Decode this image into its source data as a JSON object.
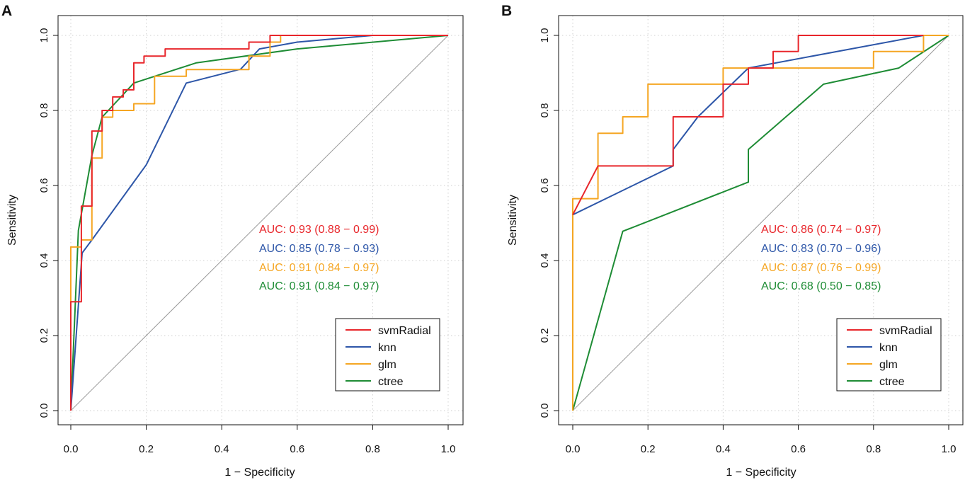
{
  "colors": {
    "svmRadial": "#e8262b",
    "knn": "#2d56a8",
    "glm": "#f5a623",
    "ctree": "#1e8c35"
  },
  "chart_data": [
    {
      "panel_label": "A",
      "type": "line",
      "title": "",
      "xlabel": "1 − Specificity",
      "ylabel": "Sensitivity",
      "xlim": [
        0,
        1
      ],
      "ylim": [
        0,
        1
      ],
      "x_ticks": [
        "0.0",
        "0.2",
        "0.4",
        "0.6",
        "0.8",
        "1.0"
      ],
      "y_ticks": [
        "0.0",
        "0.2",
        "0.4",
        "0.6",
        "0.8",
        "1.0"
      ],
      "grid": true,
      "diagonal_reference": true,
      "legend_position": "bottom-right",
      "series": [
        {
          "name": "svmRadial",
          "color": "#e8262b",
          "auc_label": "AUC: 0.93 (0.88 − 0.99)",
          "points": [
            [
              0,
              0
            ],
            [
              0,
              0.29
            ],
            [
              0.028,
              0.29
            ],
            [
              0.028,
              0.545
            ],
            [
              0.056,
              0.545
            ],
            [
              0.056,
              0.745
            ],
            [
              0.083,
              0.745
            ],
            [
              0.083,
              0.8
            ],
            [
              0.111,
              0.8
            ],
            [
              0.111,
              0.836
            ],
            [
              0.139,
              0.836
            ],
            [
              0.139,
              0.855
            ],
            [
              0.167,
              0.855
            ],
            [
              0.167,
              0.927
            ],
            [
              0.194,
              0.927
            ],
            [
              0.194,
              0.945
            ],
            [
              0.25,
              0.945
            ],
            [
              0.25,
              0.964
            ],
            [
              0.472,
              0.964
            ],
            [
              0.472,
              0.982
            ],
            [
              0.528,
              0.982
            ],
            [
              0.528,
              1
            ],
            [
              1,
              1
            ]
          ]
        },
        {
          "name": "knn",
          "color": "#2d56a8",
          "auc_label": "AUC: 0.85 (0.78 − 0.93)",
          "points": [
            [
              0,
              0
            ],
            [
              0.03,
              0.42
            ],
            [
              0.056,
              0.455
            ],
            [
              0.2,
              0.655
            ],
            [
              0.306,
              0.873
            ],
            [
              0.45,
              0.91
            ],
            [
              0.5,
              0.964
            ],
            [
              0.6,
              0.982
            ],
            [
              0.8,
              1
            ],
            [
              1,
              1
            ]
          ]
        },
        {
          "name": "glm",
          "color": "#f5a623",
          "auc_label": "AUC: 0.91 (0.84 − 0.97)",
          "points": [
            [
              0,
              0
            ],
            [
              0,
              0.436
            ],
            [
              0.028,
              0.436
            ],
            [
              0.028,
              0.455
            ],
            [
              0.056,
              0.455
            ],
            [
              0.056,
              0.673
            ],
            [
              0.083,
              0.673
            ],
            [
              0.083,
              0.782
            ],
            [
              0.111,
              0.782
            ],
            [
              0.111,
              0.8
            ],
            [
              0.167,
              0.8
            ],
            [
              0.167,
              0.818
            ],
            [
              0.222,
              0.818
            ],
            [
              0.222,
              0.891
            ],
            [
              0.306,
              0.891
            ],
            [
              0.306,
              0.909
            ],
            [
              0.472,
              0.909
            ],
            [
              0.472,
              0.945
            ],
            [
              0.528,
              0.945
            ],
            [
              0.528,
              0.982
            ],
            [
              0.556,
              0.982
            ],
            [
              0.556,
              1
            ],
            [
              1,
              1
            ]
          ]
        },
        {
          "name": "ctree",
          "color": "#1e8c35",
          "auc_label": "AUC: 0.91 (0.84 − 0.97)",
          "points": [
            [
              0,
              0
            ],
            [
              0.02,
              0.48
            ],
            [
              0.056,
              0.68
            ],
            [
              0.083,
              0.782
            ],
            [
              0.167,
              0.873
            ],
            [
              0.333,
              0.927
            ],
            [
              0.6,
              0.964
            ],
            [
              1,
              1
            ]
          ]
        }
      ]
    },
    {
      "panel_label": "B",
      "type": "line",
      "title": "",
      "xlabel": "1 − Specificity",
      "ylabel": "Sensitivity",
      "xlim": [
        0,
        1
      ],
      "ylim": [
        0,
        1
      ],
      "x_ticks": [
        "0.0",
        "0.2",
        "0.4",
        "0.6",
        "0.8",
        "1.0"
      ],
      "y_ticks": [
        "0.0",
        "0.2",
        "0.4",
        "0.6",
        "0.8",
        "1.0"
      ],
      "grid": true,
      "diagonal_reference": true,
      "legend_position": "bottom-right",
      "series": [
        {
          "name": "svmRadial",
          "color": "#e8262b",
          "auc_label": "AUC: 0.86 (0.74 − 0.97)",
          "points": [
            [
              0,
              0.522
            ],
            [
              0.067,
              0.652
            ],
            [
              0.267,
              0.652
            ],
            [
              0.267,
              0.783
            ],
            [
              0.4,
              0.783
            ],
            [
              0.4,
              0.87
            ],
            [
              0.467,
              0.87
            ],
            [
              0.467,
              0.913
            ],
            [
              0.533,
              0.913
            ],
            [
              0.533,
              0.957
            ],
            [
              0.6,
              0.957
            ],
            [
              0.6,
              1
            ],
            [
              0.933,
              1
            ]
          ]
        },
        {
          "name": "knn",
          "color": "#2d56a8",
          "auc_label": "AUC: 0.83 (0.70 − 0.96)",
          "points": [
            [
              0,
              0.522
            ],
            [
              0.267,
              0.652
            ],
            [
              0.267,
              0.696
            ],
            [
              0.333,
              0.783
            ],
            [
              0.467,
              0.913
            ],
            [
              0.933,
              1
            ],
            [
              1,
              1
            ]
          ]
        },
        {
          "name": "glm",
          "color": "#f5a623",
          "auc_label": "AUC: 0.87 (0.76 − 0.99)",
          "points": [
            [
              0,
              0
            ],
            [
              0,
              0.565
            ],
            [
              0.067,
              0.565
            ],
            [
              0.067,
              0.739
            ],
            [
              0.133,
              0.739
            ],
            [
              0.133,
              0.783
            ],
            [
              0.2,
              0.783
            ],
            [
              0.2,
              0.87
            ],
            [
              0.4,
              0.87
            ],
            [
              0.4,
              0.913
            ],
            [
              0.8,
              0.913
            ],
            [
              0.8,
              0.957
            ],
            [
              0.933,
              0.957
            ],
            [
              0.933,
              1
            ],
            [
              1,
              1
            ]
          ]
        },
        {
          "name": "ctree",
          "color": "#1e8c35",
          "auc_label": "AUC: 0.68 (0.50 − 0.85)",
          "points": [
            [
              0,
              0
            ],
            [
              0.133,
              0.478
            ],
            [
              0.467,
              0.609
            ],
            [
              0.467,
              0.696
            ],
            [
              0.667,
              0.87
            ],
            [
              0.867,
              0.913
            ],
            [
              1,
              1
            ]
          ]
        }
      ]
    }
  ]
}
